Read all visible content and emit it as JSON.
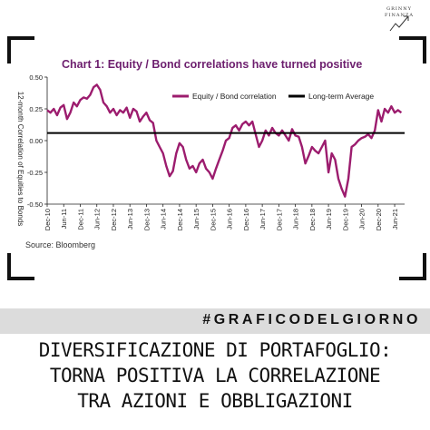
{
  "brand": {
    "line1": "GRINNY",
    "line2": "FINANZA"
  },
  "chart_data": {
    "type": "line",
    "title": "Chart 1: Equity / Bond correlations have turned positive",
    "ylabel": "12-month Correlation of Equities to Bonds",
    "xlabel": "",
    "ylim": [
      -0.5,
      0.5
    ],
    "yticks": [
      "0.50",
      "0.25",
      "0.00",
      "-0.25",
      "-0.50"
    ],
    "ytick_values": [
      0.5,
      0.25,
      0.0,
      -0.25,
      -0.5
    ],
    "xticks": [
      "Dec-10",
      "Jun-11",
      "Dec-11",
      "Jun-12",
      "Dec-12",
      "Jun-13",
      "Dec-13",
      "Jun-14",
      "Dec-14",
      "Jun-15",
      "Dec-15",
      "Jun-16",
      "Dec-16",
      "Jun-17",
      "Dec-17",
      "Jun-18",
      "Dec-18",
      "Jun-19",
      "Dec-19",
      "Jun-20",
      "Dec-20",
      "Jun-21"
    ],
    "legend_position": "top-right",
    "grid": false,
    "series": [
      {
        "name": "Equity / Bond correlation",
        "color": "#9c1c6e",
        "x": [
          0.0,
          0.2,
          0.4,
          0.6,
          0.8,
          1.0,
          1.2,
          1.4,
          1.6,
          1.8,
          2.0,
          2.2,
          2.4,
          2.6,
          2.8,
          3.0,
          3.2,
          3.4,
          3.6,
          3.8,
          4.0,
          4.2,
          4.4,
          4.6,
          4.8,
          5.0,
          5.2,
          5.4,
          5.6,
          5.8,
          6.0,
          6.2,
          6.4,
          6.6,
          6.8,
          7.0,
          7.2,
          7.4,
          7.6,
          7.8,
          8.0,
          8.2,
          8.4,
          8.6,
          8.8,
          9.0,
          9.2,
          9.4,
          9.6,
          9.8,
          10.0,
          10.2,
          10.4,
          10.6,
          10.8,
          11.0,
          11.2,
          11.4,
          11.6,
          11.8,
          12.0,
          12.2,
          12.4,
          12.6,
          12.8,
          13.0,
          13.2,
          13.4,
          13.6,
          13.8,
          14.0,
          14.2,
          14.4,
          14.6,
          14.8,
          15.0,
          15.2,
          15.4,
          15.6,
          15.8,
          16.0,
          16.2,
          16.4,
          16.6,
          16.8,
          17.0,
          17.2,
          17.4,
          17.6,
          17.8,
          18.0,
          18.2,
          18.4,
          18.6,
          18.8,
          19.0,
          19.2,
          19.4,
          19.6,
          19.8,
          20.0,
          20.2,
          20.4,
          20.6,
          20.8,
          21.0,
          21.2,
          21.4
        ],
        "values": [
          0.24,
          0.22,
          0.25,
          0.2,
          0.26,
          0.28,
          0.17,
          0.22,
          0.3,
          0.27,
          0.32,
          0.34,
          0.33,
          0.36,
          0.42,
          0.44,
          0.4,
          0.3,
          0.27,
          0.22,
          0.25,
          0.2,
          0.24,
          0.22,
          0.26,
          0.18,
          0.25,
          0.23,
          0.15,
          0.19,
          0.22,
          0.16,
          0.14,
          0.0,
          -0.05,
          -0.1,
          -0.2,
          -0.28,
          -0.24,
          -0.1,
          -0.02,
          -0.05,
          -0.15,
          -0.22,
          -0.2,
          -0.25,
          -0.18,
          -0.15,
          -0.22,
          -0.25,
          -0.3,
          -0.22,
          -0.15,
          -0.08,
          0.0,
          0.02,
          0.1,
          0.12,
          0.08,
          0.13,
          0.15,
          0.12,
          0.15,
          0.05,
          -0.05,
          0.0,
          0.08,
          0.04,
          0.1,
          0.06,
          0.04,
          0.08,
          0.04,
          0.0,
          0.09,
          0.04,
          0.03,
          -0.05,
          -0.18,
          -0.12,
          -0.05,
          -0.08,
          -0.1,
          -0.05,
          0.0,
          -0.25,
          -0.1,
          -0.15,
          -0.3,
          -0.38,
          -0.44,
          -0.3,
          -0.05,
          -0.03,
          0.0,
          0.02,
          0.03,
          0.05,
          0.02,
          0.08,
          0.24,
          0.15,
          0.25,
          0.22,
          0.27,
          0.22,
          0.24,
          0.22
        ]
      },
      {
        "name": "Long-term Average",
        "color": "#000000",
        "x": [
          0.0,
          21.6
        ],
        "values": [
          0.06,
          0.06
        ]
      }
    ]
  },
  "source": "Source: Bloomberg",
  "hashtag": "#GRAFICODELGIORNO",
  "headline": {
    "line1": "DIVERSIFICAZIONE DI PORTAFOGLIO:",
    "line2": "TORNA POSITIVA LA CORRELAZIONE",
    "line3": "TRA AZIONI E OBBLIGAZIONI"
  }
}
